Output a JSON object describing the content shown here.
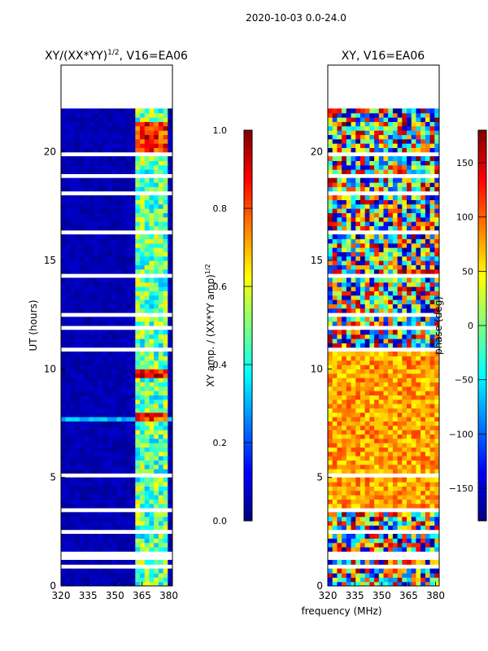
{
  "figure_title": "2020-10-03 0.0-24.0",
  "shared_xlabel": "frequency (MHz)",
  "chart_data": [
    {
      "type": "heatmap",
      "title_text": "XY/(XX*YY)",
      "title_exp": "1/2",
      "title_suffix": ", V16=EA06",
      "xlabel": "",
      "ylabel": "UT (hours)",
      "xlim": [
        320,
        382
      ],
      "ylim": [
        0,
        24
      ],
      "xticks": [
        320,
        335,
        350,
        365,
        380
      ],
      "yticks": [
        0,
        5,
        10,
        15,
        20
      ],
      "data_time_range": [
        0.0,
        22.0
      ],
      "bright_freq_band": [
        361,
        380
      ],
      "colormap": "jet",
      "colorbar": {
        "label_text": "XY amp. / (XX*YY amp)",
        "label_exp": "1/2",
        "range": [
          0.0,
          1.0
        ],
        "ticks": [
          "0.0",
          "0.2",
          "0.4",
          "0.6",
          "0.8",
          "1.0"
        ],
        "tick_values": [
          0.0,
          0.2,
          0.4,
          0.6,
          0.8,
          1.0
        ]
      }
    },
    {
      "type": "heatmap",
      "title_text": "XY, V16=EA06",
      "xlabel": "frequency (MHz)",
      "ylabel": "",
      "xlim": [
        320,
        382
      ],
      "ylim": [
        0,
        24
      ],
      "xticks": [
        320,
        335,
        350,
        365,
        380
      ],
      "yticks": [
        0,
        5,
        10,
        15,
        20
      ],
      "data_time_range": [
        0.0,
        22.0
      ],
      "colormap": "jet",
      "colorbar": {
        "label_text": "phase (deg)",
        "range": [
          -180,
          180
        ],
        "ticks": [
          "−150",
          "−100",
          "−50",
          "0",
          "50",
          "100",
          "150"
        ],
        "tick_values": [
          -150,
          -100,
          -50,
          0,
          50,
          100,
          150
        ]
      }
    }
  ],
  "colors": {
    "jet": [
      "#00007f",
      "#0000ff",
      "#007fff",
      "#00ffff",
      "#7fff7f",
      "#ffff00",
      "#ff7f00",
      "#ff0000",
      "#7f0000"
    ],
    "axis": "#000000",
    "background": "#ffffff"
  }
}
